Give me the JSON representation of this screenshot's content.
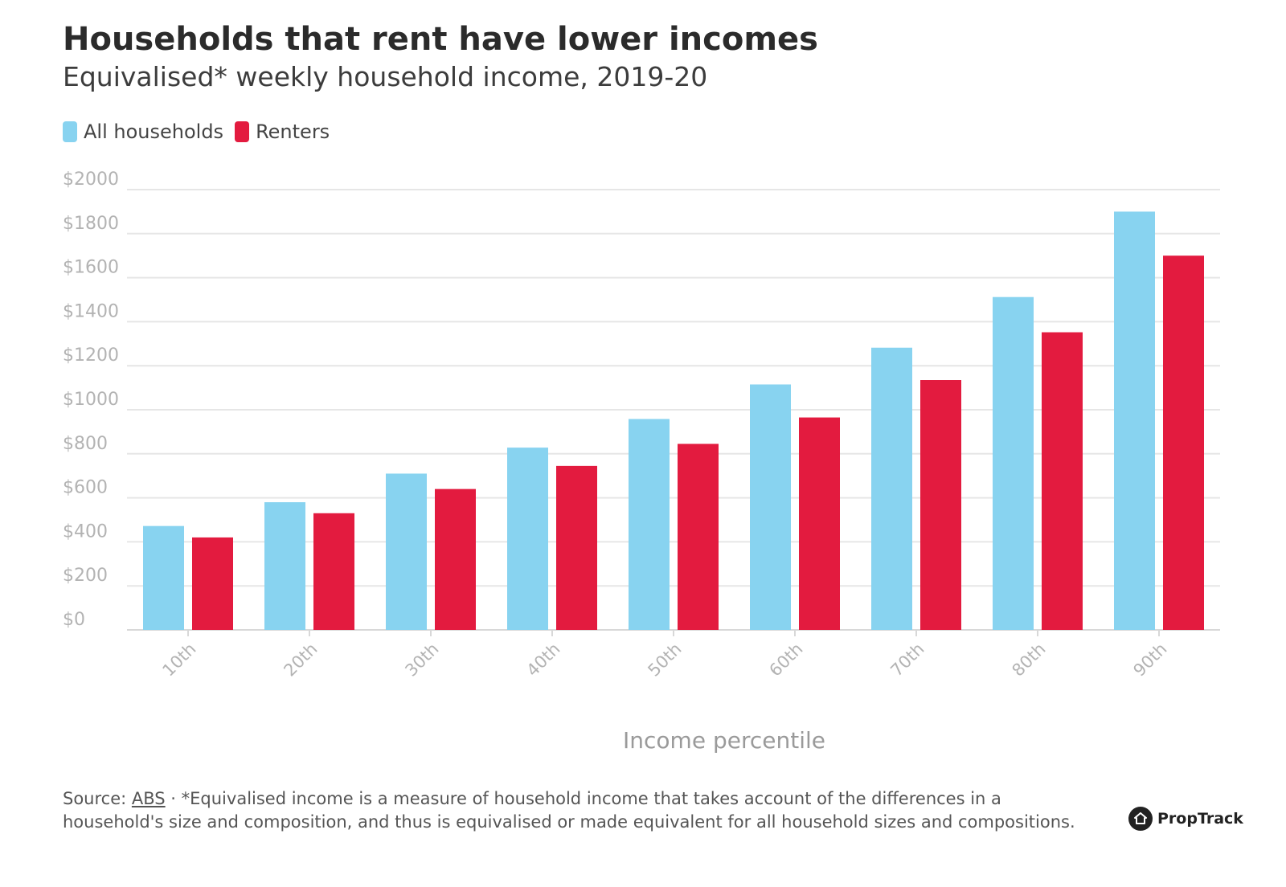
{
  "header": {
    "title": "Households that rent have lower incomes",
    "subtitle": "Equivalised* weekly household income, 2019-20"
  },
  "legend": {
    "items": [
      {
        "label": "All households",
        "color": "#88d3f0"
      },
      {
        "label": "Renters",
        "color": "#e31b3f"
      }
    ]
  },
  "chart_data": {
    "type": "bar",
    "xlabel": "Income percentile",
    "ylabel": "",
    "ylim": [
      0,
      2000
    ],
    "yticks": [
      "$0",
      "$200",
      "$400",
      "$600",
      "$800",
      "$1000",
      "$1200",
      "$1400",
      "$1600",
      "$1800",
      "$2000"
    ],
    "ytick_values": [
      0,
      200,
      400,
      600,
      800,
      1000,
      1200,
      1400,
      1600,
      1800,
      2000
    ],
    "categories": [
      "10th",
      "20th",
      "30th",
      "40th",
      "50th",
      "60th",
      "70th",
      "80th",
      "90th"
    ],
    "series": [
      {
        "name": "All households",
        "color": "#88d3f0",
        "values": [
          472,
          580,
          710,
          828,
          958,
          1115,
          1282,
          1512,
          1900
        ]
      },
      {
        "name": "Renters",
        "color": "#e31b3f",
        "values": [
          420,
          530,
          640,
          745,
          845,
          965,
          1135,
          1352,
          1700
        ]
      }
    ],
    "grid": true,
    "legend_position": "top-left"
  },
  "footer": {
    "source_prefix": "Source: ",
    "source_link": "ABS",
    "note": " · *Equivalised income is a measure of household income that takes account of the differences in a household's size and composition, and thus is equivalised or made equivalent for all household sizes and compositions.",
    "brand": "PropTrack"
  }
}
